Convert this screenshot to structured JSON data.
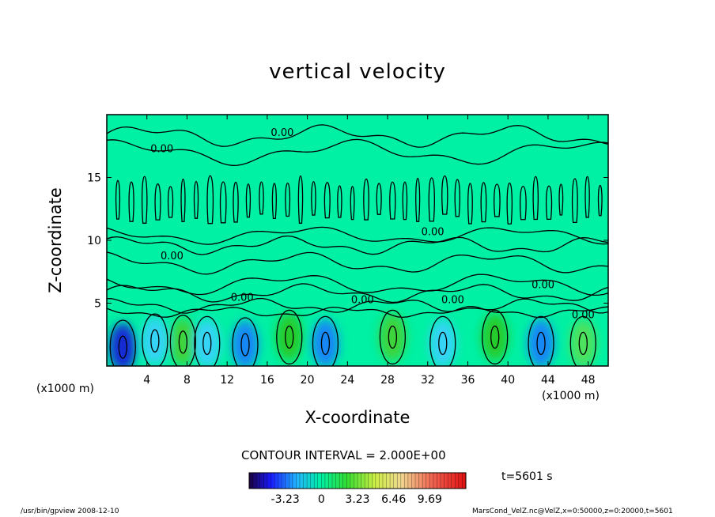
{
  "chart_data": {
    "type": "heatmap",
    "title": "vertical velocity",
    "xlabel": "X-coordinate",
    "ylabel": "Z-coordinate",
    "x_unit_left": "(x1000 m)",
    "x_unit_right": "(x1000 m)",
    "x_ticks": [
      "4",
      "8",
      "12",
      "16",
      "20",
      "24",
      "28",
      "32",
      "36",
      "40",
      "44",
      "48"
    ],
    "x_tick_values": [
      4,
      8,
      12,
      16,
      20,
      24,
      28,
      32,
      36,
      40,
      44,
      48
    ],
    "y_ticks": [
      "5",
      "10",
      "15"
    ],
    "y_tick_values": [
      5,
      10,
      15
    ],
    "xlim": [
      0,
      50
    ],
    "ylim": [
      0,
      20
    ],
    "contour_interval": "CONTOUR INTERVAL = 2.000E+00",
    "contour_label": "0.00",
    "colorbar": {
      "range": [
        -6.46,
        12.92
      ],
      "tick_labels": [
        "-3.23",
        "0",
        "3.23",
        "6.46",
        "9.69"
      ],
      "tick_values": [
        -3.23,
        0,
        3.23,
        6.46,
        9.69
      ]
    },
    "time_label": "t=5601 s",
    "cells": [
      {
        "x": 1.6,
        "z": 1.5,
        "w": -5.5
      },
      {
        "x": 4.8,
        "z": 2.0,
        "w": -3.0
      },
      {
        "x": 7.6,
        "z": 1.9,
        "w": 4.5
      },
      {
        "x": 10.0,
        "z": 1.8,
        "w": -2.5
      },
      {
        "x": 13.8,
        "z": 1.7,
        "w": -4.5
      },
      {
        "x": 18.2,
        "z": 2.3,
        "w": 5.0
      },
      {
        "x": 21.8,
        "z": 1.8,
        "w": -4.5
      },
      {
        "x": 28.5,
        "z": 2.3,
        "w": 3.5
      },
      {
        "x": 33.5,
        "z": 1.8,
        "w": -2.0
      },
      {
        "x": 38.7,
        "z": 2.3,
        "w": 5.5
      },
      {
        "x": 43.3,
        "z": 1.8,
        "w": -4.5
      },
      {
        "x": 47.5,
        "z": 1.8,
        "w": 2.5
      }
    ]
  },
  "footer": {
    "left": "/usr/bin/gpview   2008-12-10",
    "right": "MarsCond_VelZ.nc@VelZ,x=0:50000,z=0:20000,t=5601"
  },
  "colors": {
    "background_field": "#00f0a4",
    "contour_line": "#000000"
  }
}
